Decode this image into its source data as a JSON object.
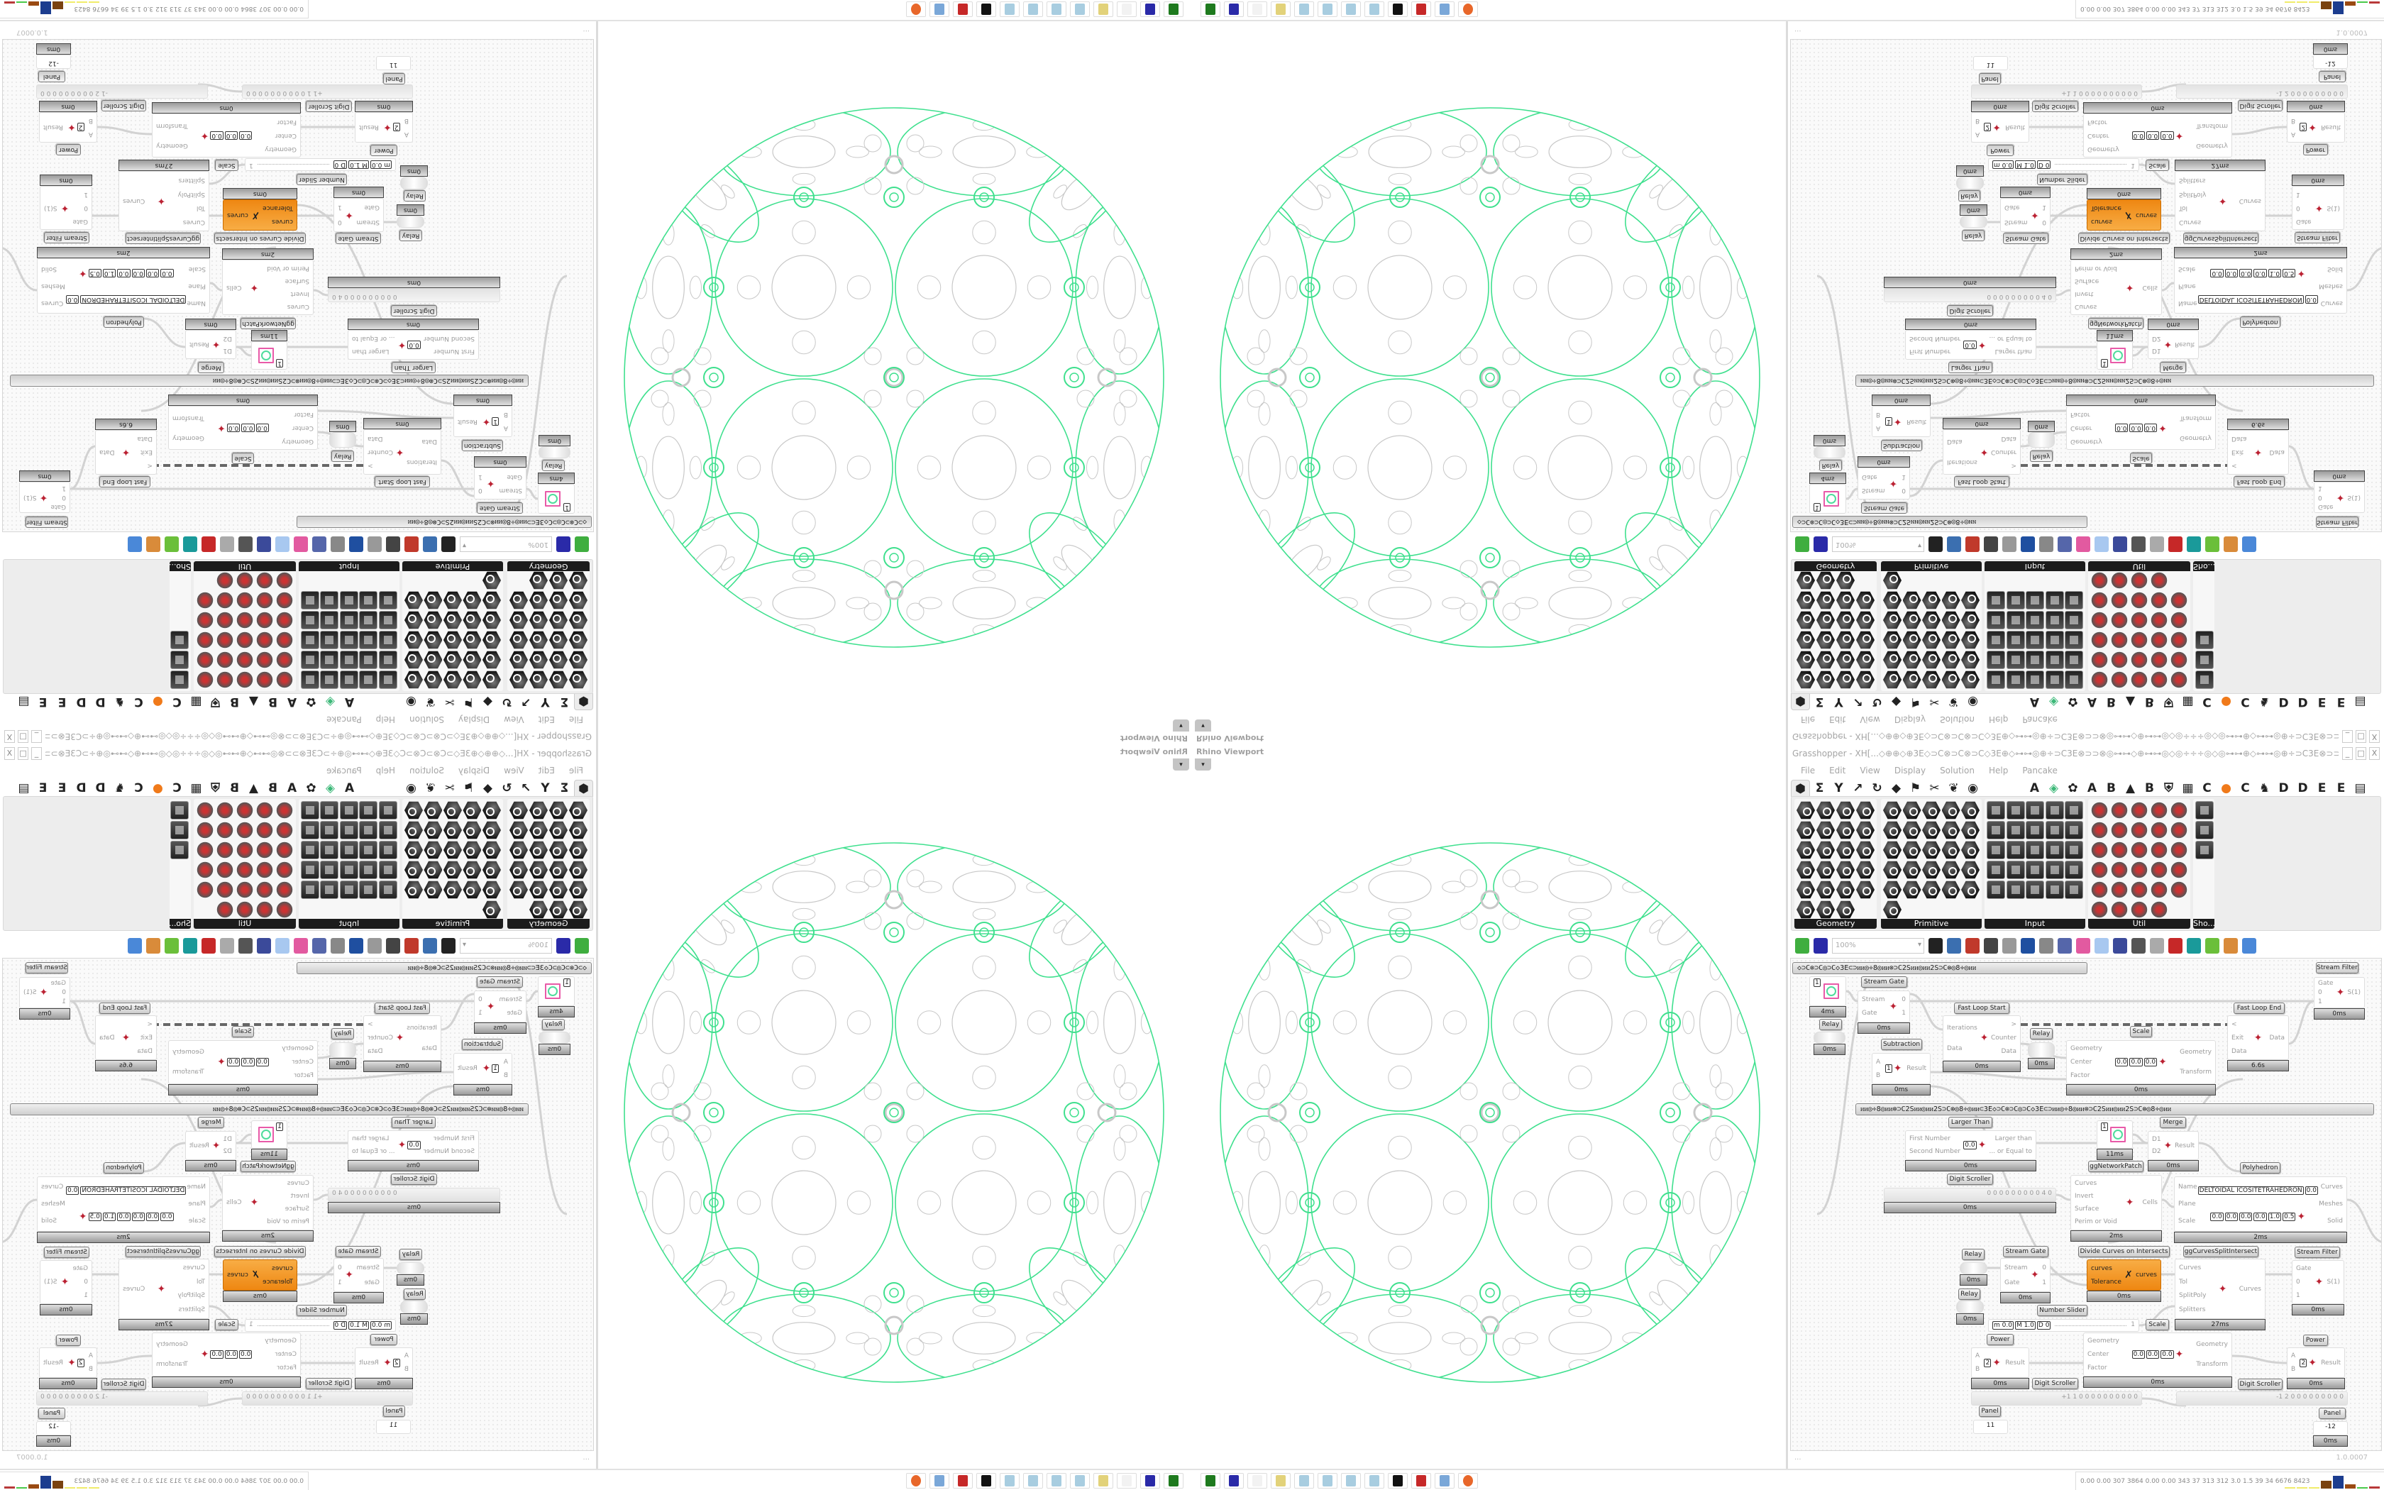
{
  "grasshopper": {
    "title": "Grasshopper - XH[...◇⊕⊕◇⊕3E◇⊃C⊗⊃C⊗⊃C◇3E⊕◇⊶⊶◎⊕÷⊃C3E⊗⊃⊃⊗◎⊶⊶◇⊕⊶⊶◎◇◎÷÷÷◎◇◎⊶⊶⊕◇⊶⊶◎⊕÷⊃C3E⊗⊃⊃⊗⊃...",
    "window_buttons": [
      "_",
      "□",
      "X"
    ],
    "menu": [
      "File",
      "Edit",
      "View",
      "Display",
      "Solution",
      "Help",
      "Pancake"
    ],
    "tabs": [
      {
        "glyph": "⬢",
        "icon": "hexagon-icon",
        "active": true
      },
      {
        "glyph": "Σ",
        "icon": "sigma-icon"
      },
      {
        "glyph": "Y",
        "icon": "branch-icon"
      },
      {
        "glyph": "↗",
        "icon": "arrow-icon"
      },
      {
        "glyph": "↻",
        "icon": "loop-icon"
      },
      {
        "glyph": "◆",
        "icon": "leaf-icon"
      },
      {
        "glyph": "⚑",
        "icon": "flag-icon"
      },
      {
        "glyph": "✂",
        "icon": "scissors-icon"
      },
      {
        "glyph": "❦",
        "icon": "bird-icon"
      },
      {
        "glyph": "◉",
        "icon": "eye-icon"
      },
      {
        "glyph": "A",
        "icon": "letter-a-icon"
      },
      {
        "glyph": "◈",
        "icon": "crystal-icon"
      },
      {
        "glyph": "✿",
        "icon": "puzzle-icon"
      },
      {
        "glyph": "A",
        "icon": "letter-a-icon"
      },
      {
        "glyph": "B",
        "icon": "letter-b-icon"
      },
      {
        "glyph": "▲",
        "icon": "mountain-icon"
      },
      {
        "glyph": "B",
        "icon": "letter-b-icon"
      },
      {
        "glyph": "⛨",
        "icon": "shield-icon"
      },
      {
        "glyph": "▦",
        "icon": "grid-icon"
      },
      {
        "glyph": "C",
        "icon": "letter-c-icon"
      },
      {
        "glyph": "●",
        "icon": "orange-dot-icon"
      },
      {
        "glyph": "C",
        "icon": "letter-c-icon"
      },
      {
        "glyph": "♞",
        "icon": "rooster-icon"
      },
      {
        "glyph": "D",
        "icon": "letter-d-icon"
      },
      {
        "glyph": "D",
        "icon": "letter-d-icon"
      },
      {
        "glyph": "E",
        "icon": "letter-e-icon"
      },
      {
        "glyph": "E",
        "icon": "letter-e-icon"
      },
      {
        "glyph": "▤",
        "icon": "grid-end-icon"
      }
    ],
    "palette": [
      {
        "label": "Geometry",
        "style": "hex",
        "icons": [
          "point",
          "line",
          "vector",
          "spiral",
          "circle-x",
          "plane",
          "box-outline",
          "wave",
          "arrow",
          "rhombus",
          "abc-grid",
          "curve",
          "circle",
          "cube",
          "capsule",
          "atom",
          "arc",
          "rounded-cube",
          "brep",
          "swirl",
          "ring",
          "geodesic",
          "magnet"
        ]
      },
      {
        "label": "Primitive",
        "style": "hex",
        "icons": [
          "drop",
          "bug",
          "grid",
          "hook",
          "bracket",
          "pentagon",
          "arrow-grid",
          "clock",
          "image",
          "gear",
          "scissors",
          "ucs",
          "hatch",
          "photo",
          "seven",
          "plus",
          "tree",
          "cross-loop",
          "decimal",
          "hash",
          "c-slash",
          "document",
          "letter-a",
          "id",
          "sphere",
          "eye"
        ]
      },
      {
        "label": "Input",
        "style": "sq",
        "icons": [
          "import",
          "button",
          "color-gem",
          "3dm",
          "link",
          "signal",
          "pointer",
          "paint",
          "xyz",
          "toggle",
          "gradient",
          "color-wheel",
          "img",
          "knob",
          "checker",
          "graph-mapper",
          "pdb",
          "scrubber",
          "calendar",
          "disc",
          "shp",
          "list",
          "clock",
          "color-bars",
          "id-tag"
        ]
      },
      {
        "label": "Util",
        "style": "ut",
        "icons": [
          "cherry",
          "magnet-u",
          "arrow-right",
          "c-slash",
          "letter-a",
          "play",
          "rec",
          "search",
          "spiral",
          "cd",
          "axes",
          "pencil",
          "compass",
          "seven",
          "flask",
          "tree",
          "screen",
          "egg",
          "key",
          "fx",
          "circle",
          "refresh",
          "pr",
          "decimal",
          "palette",
          "abc",
          "arrow-fat",
          "speedometer",
          "cross"
        ]
      },
      {
        "label": "Sho...",
        "style": "sq",
        "icons": [
          "goggles",
          "goggles-2",
          "presentation"
        ]
      }
    ],
    "toolbar": {
      "zoom": "100%",
      "icons": [
        "new-document",
        "save",
        "zoom-extents",
        "eye",
        "pen",
        "clamp",
        "at-sign",
        "gha",
        "image",
        "search-s",
        "package",
        "bulb",
        "cross-wires",
        "bomb",
        "ring",
        "gem",
        "teal-shape",
        "green-shape",
        "half-sphere",
        "blue-sphere"
      ]
    },
    "canvas": {
      "groups": [
        "◇⊃C⊗⊃C◎⊃C◇3E⊂⊃ᴎᴎ◎÷8◎ᴎᴎ⊗⊃C2Sᴎᴎ◎ᴎᴎ2S⊃C⊗◎8÷◎ᴎᴎ",
        "ᴎᴎ◎÷8◎ᴎᴎ⊗⊃C2Sᴎᴎ◎ᴎᴎ2S⊃C⊗◎8÷◎ᴎᴎ⊂3E◇⊃C⊗⊃C◎⊃C◇3E⊂⊃ᴎᴎ◎÷8◎ᴎᴎ⊗⊃C2Sᴎᴎ◎ᴎᴎ2S⊃C⊗◎8÷◎ᴎᴎ"
      ],
      "nodes": [
        {
          "title": "Stream Filter",
          "inputs": [
            "Gate",
            "0",
            "1"
          ],
          "outputs": [
            "S(1)"
          ],
          "footer": "0ms"
        },
        {
          "title": "",
          "kind": "preview",
          "value": "1",
          "footer": "4ms"
        },
        {
          "title": "Relay",
          "kind": "relay",
          "footer": "0ms"
        },
        {
          "title": "Stream Gate",
          "inputs": [
            "Stream",
            "Gate"
          ],
          "outputs": [
            "0",
            "1"
          ],
          "footer": "0ms"
        },
        {
          "title": "Fast Loop Start",
          "inputs": [
            "Iterations",
            "Data"
          ],
          "outputs": [
            ">",
            "Counter",
            "Data"
          ],
          "footer": "0ms"
        },
        {
          "title": "Relay",
          "kind": "relay",
          "footer": "0ms"
        },
        {
          "title": "Scale",
          "inputs": [
            "Geometry",
            "Center",
            "Factor"
          ],
          "fields": [
            "0.0",
            "0.0",
            "0.0"
          ],
          "outputs": [
            "Geometry",
            "Transform"
          ],
          "footer": "0ms"
        },
        {
          "title": "Fast Loop End",
          "inputs": [
            "<",
            "Exit",
            "Data"
          ],
          "outputs": [
            "Data"
          ],
          "footer": "6.6s"
        },
        {
          "title": "Subtraction",
          "inputs": [
            "A",
            "B"
          ],
          "fields": [
            "1"
          ],
          "outputs": [
            "Result"
          ],
          "footer": "0ms"
        },
        {
          "title": "Larger Than",
          "inputs": [
            "First Number",
            "Second Number"
          ],
          "fields": [
            "0.0"
          ],
          "outputs": [
            "Larger than",
            "... or Equal to"
          ],
          "footer": "0ms"
        },
        {
          "title": "",
          "kind": "preview",
          "value": "1",
          "footer": "11ms"
        },
        {
          "title": "Merge",
          "inputs": [
            "D1",
            "D2"
          ],
          "outputs": [
            "Result"
          ],
          "footer": "0ms"
        },
        {
          "title": "Digit Scroller",
          "kind": "scroller",
          "value": "0 0 0 0 0 0 0 0 0 4 0",
          "footer": "0ms"
        },
        {
          "title": "ggNetworkPatch",
          "inputs": [
            "Curves",
            "Invert",
            "Surface",
            "Perim or Void"
          ],
          "outputs": [
            "Cells"
          ],
          "footer": "2ms"
        },
        {
          "title": "Polyhedron",
          "inputs": [
            "Name",
            "Plane",
            "Scale"
          ],
          "fields": [
            "DELTOIDAL ICOSITETRAHEDRON",
            "0.0",
            "0.0",
            "0.0",
            "0.0",
            "0.0",
            "1.0",
            "0.5"
          ],
          "outputs": [
            "Curves",
            "Meshes",
            "Solid"
          ],
          "footer": "2ms"
        },
        {
          "title": "Relay",
          "kind": "relay",
          "footer": "0ms"
        },
        {
          "title": "Stream Gate",
          "inputs": [
            "Stream",
            "Gate"
          ],
          "outputs": [
            "0",
            "1"
          ],
          "footer": "0ms"
        },
        {
          "title": "Divide Curves on Intersects",
          "kind": "orange",
          "inputs": [
            "curves",
            "Tolerance"
          ],
          "outputs": [
            "curves"
          ],
          "footer": "0ms"
        },
        {
          "title": "ggCurvesSplitIntersect",
          "inputs": [
            "Curves",
            "Tol",
            "SplitPoly",
            "Splitters"
          ],
          "outputs": [
            "Curves"
          ],
          "footer": "27ms"
        },
        {
          "title": "Stream Filter",
          "inputs": [
            "Gate",
            "0",
            "1"
          ],
          "outputs": [
            "S(1)"
          ],
          "footer": "0ms"
        },
        {
          "title": "Relay",
          "kind": "relay",
          "footer": "0ms"
        },
        {
          "title": "Number Slider",
          "kind": "slider",
          "fields": [
            "m 0.0",
            "M 1.0",
            "D 0"
          ],
          "value": "1"
        },
        {
          "title": "Scale",
          "inputs": [
            "Geometry",
            "Center",
            "Factor"
          ],
          "fields": [
            "0.0",
            "0.0",
            "0.0"
          ],
          "outputs": [
            "Geometry",
            "Transform"
          ],
          "footer": "0ms"
        },
        {
          "title": "Power",
          "inputs": [
            "A",
            "B"
          ],
          "fields": [
            "2"
          ],
          "outputs": [
            "Result"
          ],
          "footer": "0ms"
        },
        {
          "title": "Digit Scroller",
          "kind": "scroller",
          "value": "+1 1 0 0 0 0 0 0 0 0 0 0"
        },
        {
          "title": "Panel",
          "kind": "panel",
          "value": "11"
        },
        {
          "title": "Power",
          "inputs": [
            "A",
            "B"
          ],
          "fields": [
            "2"
          ],
          "outputs": [
            "Result"
          ],
          "footer": "0ms"
        },
        {
          "title": "Digit Scroller",
          "kind": "scroller",
          "value": "-1 2 0 0 0 0 0 0 0 0 0"
        },
        {
          "title": "Panel",
          "kind": "panel",
          "value": "-12",
          "footer": "0ms"
        }
      ]
    },
    "status": {
      "left": "...",
      "version": "1.0.0007"
    }
  },
  "viewport": {
    "title": "Rhino Viewport",
    "dropdown": "▾",
    "colors": {
      "network": "#3fe08e",
      "pattern": "#c8c8c8"
    }
  },
  "taskbar": {
    "icons": [
      {
        "name": "terminal",
        "color": "#1e7a1e"
      },
      {
        "name": "floppy-64",
        "color": "#2a2aa8"
      },
      {
        "name": "blank",
        "color": "#f2f2f2"
      },
      {
        "name": "folder",
        "color": "#e2d27a"
      },
      {
        "name": "notepad",
        "color": "#a8cde0"
      },
      {
        "name": "notepad",
        "color": "#a8cde0"
      },
      {
        "name": "notepad",
        "color": "#a8cde0"
      },
      {
        "name": "notepad",
        "color": "#a8cde0"
      },
      {
        "name": "wolf",
        "color": "#111111"
      },
      {
        "name": "red-app",
        "color": "#c62828"
      },
      {
        "name": "calculator",
        "color": "#7aa7d8"
      },
      {
        "name": "firefox",
        "color": "#e8672a"
      }
    ],
    "stats": "0.00 0.00 307 3864 0.00 0.00 343  37  313  312  3.0  1.5  39  34  6676 8423",
    "meter": [
      {
        "color": "#f0ec6a",
        "level": 0.05
      },
      {
        "color": "#f0ec6a",
        "level": 0.05
      },
      {
        "color": "#f0ec6a",
        "level": 0.05
      },
      {
        "color": "#7a4210",
        "level": 0.55
      },
      {
        "color": "#1c3d8f",
        "level": 0.9
      },
      {
        "color": "#9a4a12",
        "level": 0.3
      },
      {
        "color": "#4ac94a",
        "level": 0.05
      },
      {
        "color": "#b83a3a",
        "level": 0.15
      }
    ]
  }
}
